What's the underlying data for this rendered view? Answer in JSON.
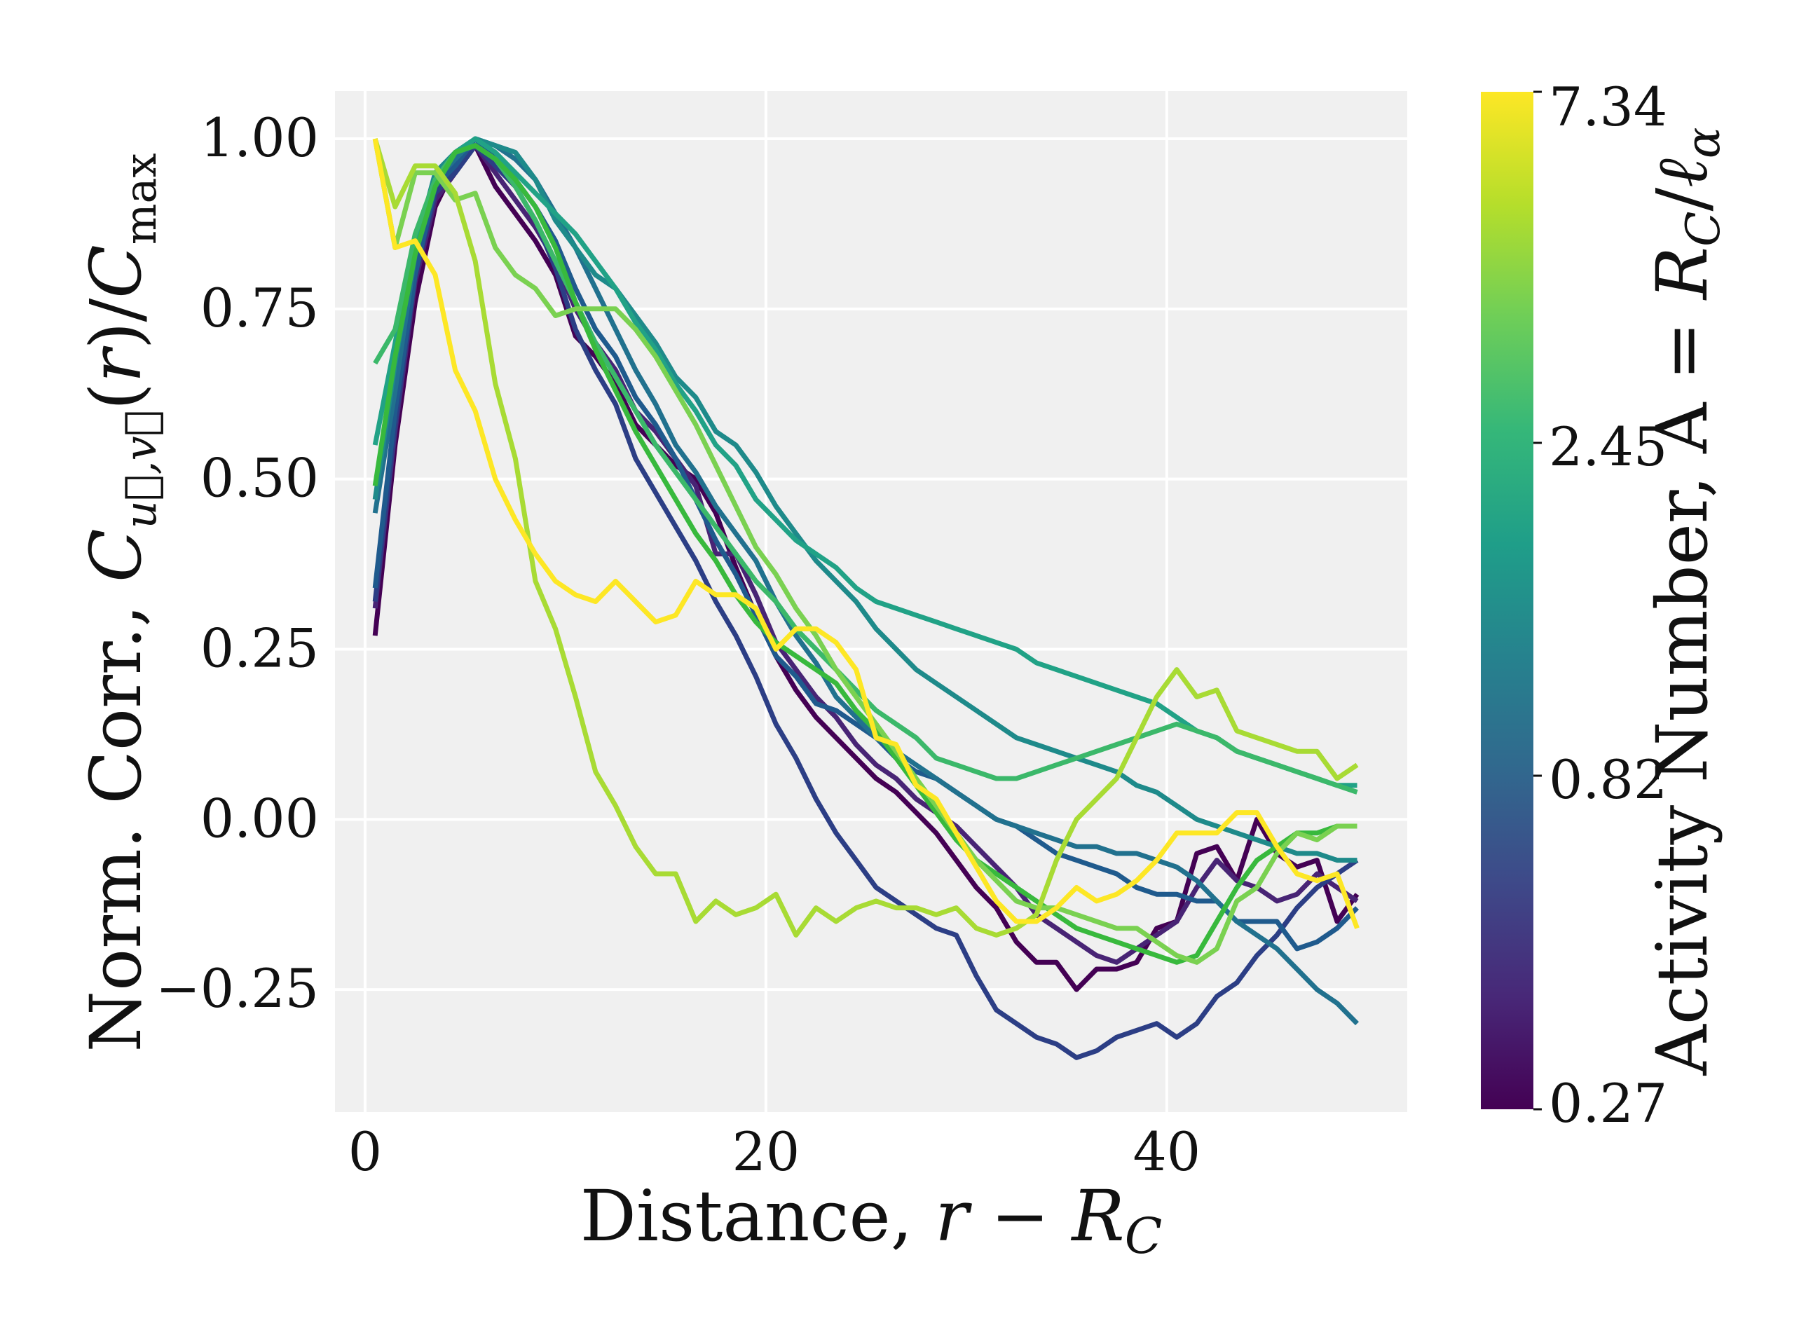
{
  "chart_data": {
    "type": "line",
    "xlabel": "Distance, r − R_C",
    "ylabel": "Norm. Corr., C_{u⃗,v⃗}(r)/C_max",
    "xlim": [
      -1.5,
      52
    ],
    "ylim": [
      -0.43,
      1.07
    ],
    "x_ticks": [
      0,
      20,
      40
    ],
    "x_tick_labels": [
      "0",
      "20",
      "40"
    ],
    "y_ticks": [
      1.0,
      0.75,
      0.5,
      0.25,
      0.0,
      -0.25
    ],
    "y_tick_labels": [
      "1.00",
      "0.75",
      "0.50",
      "0.25",
      "0.00",
      "−0.25"
    ],
    "grid": true,
    "background": "#f0f0f0",
    "x": [
      0.5,
      1.5,
      2.5,
      3.5,
      4.5,
      5.5,
      6.5,
      7.5,
      8.5,
      9.5,
      10.5,
      11.5,
      12.5,
      13.5,
      14.5,
      15.5,
      16.5,
      17.5,
      18.5,
      19.5,
      20.5,
      21.5,
      22.5,
      23.5,
      24.5,
      25.5,
      26.5,
      27.5,
      28.5,
      29.5,
      30.5,
      31.5,
      32.5,
      33.5,
      34.5,
      35.5,
      36.5,
      37.5,
      38.5,
      39.5,
      40.5,
      41.5,
      42.5,
      43.5,
      44.5,
      45.5,
      46.5,
      47.5,
      48.5,
      49.5
    ],
    "series": [
      {
        "color": "#440154",
        "values": [
          0.27,
          0.55,
          0.76,
          0.9,
          0.96,
          0.99,
          0.93,
          0.89,
          0.85,
          0.8,
          0.71,
          0.68,
          0.64,
          0.58,
          0.55,
          0.52,
          0.5,
          0.45,
          0.37,
          0.3,
          0.24,
          0.19,
          0.15,
          0.12,
          0.09,
          0.06,
          0.04,
          0.01,
          -0.02,
          -0.06,
          -0.1,
          -0.13,
          -0.18,
          -0.21,
          -0.21,
          -0.25,
          -0.22,
          -0.22,
          -0.21,
          -0.16,
          -0.15,
          -0.05,
          -0.04,
          -0.09,
          0.0,
          -0.05,
          -0.07,
          -0.06,
          -0.15,
          -0.11
        ]
      },
      {
        "color": "#482475",
        "values": [
          0.31,
          0.57,
          0.79,
          0.91,
          0.95,
          0.99,
          0.95,
          0.91,
          0.87,
          0.82,
          0.75,
          0.7,
          0.66,
          0.6,
          0.57,
          0.53,
          0.49,
          0.39,
          0.39,
          0.33,
          0.26,
          0.22,
          0.18,
          0.15,
          0.11,
          0.08,
          0.06,
          0.03,
          0.01,
          -0.01,
          -0.04,
          -0.07,
          -0.1,
          -0.14,
          -0.16,
          -0.18,
          -0.2,
          -0.21,
          -0.19,
          -0.17,
          -0.15,
          -0.1,
          -0.06,
          -0.09,
          -0.1,
          -0.12,
          -0.11,
          -0.08,
          -0.1,
          -0.12
        ]
      },
      {
        "color": "#2c3e85",
        "values": [
          0.32,
          0.58,
          0.8,
          0.92,
          0.95,
          0.99,
          0.96,
          0.93,
          0.88,
          0.81,
          0.72,
          0.66,
          0.61,
          0.53,
          0.48,
          0.43,
          0.38,
          0.32,
          0.27,
          0.21,
          0.14,
          0.09,
          0.03,
          -0.02,
          -0.06,
          -0.1,
          -0.12,
          -0.14,
          -0.16,
          -0.17,
          -0.23,
          -0.28,
          -0.3,
          -0.32,
          -0.33,
          -0.35,
          -0.34,
          -0.32,
          -0.31,
          -0.3,
          -0.32,
          -0.3,
          -0.26,
          -0.24,
          -0.2,
          -0.17,
          -0.13,
          -0.1,
          -0.08,
          -0.06
        ]
      },
      {
        "color": "#1f5a8d",
        "values": [
          0.34,
          0.6,
          0.8,
          0.93,
          0.96,
          1.0,
          0.97,
          0.94,
          0.9,
          0.85,
          0.78,
          0.72,
          0.68,
          0.62,
          0.58,
          0.53,
          0.47,
          0.41,
          0.36,
          0.3,
          0.24,
          0.21,
          0.17,
          0.16,
          0.14,
          0.12,
          0.09,
          0.07,
          0.06,
          0.04,
          0.02,
          0.0,
          -0.01,
          -0.03,
          -0.05,
          -0.06,
          -0.07,
          -0.08,
          -0.1,
          -0.11,
          -0.11,
          -0.12,
          -0.12,
          -0.15,
          -0.15,
          -0.15,
          -0.19,
          -0.18,
          -0.16,
          -0.13
        ]
      },
      {
        "color": "#21718e",
        "values": [
          0.45,
          0.63,
          0.83,
          0.94,
          0.97,
          1.0,
          0.99,
          0.97,
          0.94,
          0.89,
          0.84,
          0.78,
          0.72,
          0.66,
          0.61,
          0.55,
          0.51,
          0.46,
          0.42,
          0.38,
          0.32,
          0.27,
          0.23,
          0.18,
          0.15,
          0.12,
          0.1,
          0.08,
          0.06,
          0.04,
          0.02,
          0.0,
          -0.01,
          -0.02,
          -0.03,
          -0.04,
          -0.04,
          -0.05,
          -0.05,
          -0.06,
          -0.07,
          -0.09,
          -0.12,
          -0.15,
          -0.17,
          -0.19,
          -0.22,
          -0.25,
          -0.27,
          -0.3
        ]
      },
      {
        "color": "#1e8a8a",
        "values": [
          0.47,
          0.67,
          0.84,
          0.95,
          0.98,
          1.0,
          0.99,
          0.98,
          0.94,
          0.88,
          0.84,
          0.8,
          0.78,
          0.74,
          0.7,
          0.65,
          0.62,
          0.57,
          0.55,
          0.51,
          0.46,
          0.42,
          0.38,
          0.35,
          0.32,
          0.28,
          0.25,
          0.22,
          0.2,
          0.18,
          0.16,
          0.14,
          0.12,
          0.11,
          0.1,
          0.09,
          0.08,
          0.07,
          0.05,
          0.04,
          0.02,
          0.0,
          -0.01,
          -0.02,
          -0.03,
          -0.04,
          -0.05,
          -0.05,
          -0.06,
          -0.06
        ]
      },
      {
        "color": "#21a286",
        "values": [
          0.55,
          0.7,
          0.85,
          0.94,
          0.98,
          1.0,
          0.98,
          0.95,
          0.92,
          0.89,
          0.86,
          0.82,
          0.78,
          0.73,
          0.69,
          0.64,
          0.6,
          0.55,
          0.52,
          0.47,
          0.44,
          0.41,
          0.39,
          0.37,
          0.34,
          0.32,
          0.31,
          0.3,
          0.29,
          0.28,
          0.27,
          0.26,
          0.25,
          0.23,
          0.22,
          0.21,
          0.2,
          0.19,
          0.18,
          0.17,
          0.15,
          0.13,
          0.12,
          0.1,
          0.09,
          0.08,
          0.07,
          0.06,
          0.05,
          0.05
        ]
      },
      {
        "color": "#3bb86a",
        "values": [
          0.67,
          0.72,
          0.86,
          0.94,
          0.98,
          0.99,
          0.97,
          0.93,
          0.88,
          0.82,
          0.76,
          0.7,
          0.65,
          0.6,
          0.55,
          0.51,
          0.47,
          0.43,
          0.39,
          0.35,
          0.32,
          0.28,
          0.25,
          0.22,
          0.19,
          0.16,
          0.14,
          0.12,
          0.09,
          0.08,
          0.07,
          0.06,
          0.06,
          0.07,
          0.08,
          0.09,
          0.1,
          0.11,
          0.12,
          0.13,
          0.14,
          0.13,
          0.12,
          0.1,
          0.09,
          0.08,
          0.07,
          0.06,
          0.05,
          0.04
        ]
      },
      {
        "color": "#38b93d",
        "values": [
          0.49,
          0.68,
          0.83,
          0.93,
          0.98,
          0.99,
          0.97,
          0.94,
          0.9,
          0.84,
          0.76,
          0.69,
          0.63,
          0.57,
          0.52,
          0.47,
          0.42,
          0.38,
          0.33,
          0.29,
          0.26,
          0.24,
          0.22,
          0.2,
          0.16,
          0.13,
          0.09,
          0.05,
          0.01,
          -0.03,
          -0.06,
          -0.08,
          -0.1,
          -0.12,
          -0.14,
          -0.16,
          -0.17,
          -0.18,
          -0.19,
          -0.2,
          -0.21,
          -0.2,
          -0.15,
          -0.1,
          -0.06,
          -0.04,
          -0.02,
          -0.02,
          -0.01,
          -0.01
        ]
      },
      {
        "color": "#7ad151",
        "values": [
          1.0,
          0.84,
          0.95,
          0.95,
          0.91,
          0.92,
          0.84,
          0.8,
          0.78,
          0.74,
          0.75,
          0.75,
          0.75,
          0.72,
          0.68,
          0.63,
          0.58,
          0.52,
          0.46,
          0.4,
          0.36,
          0.31,
          0.27,
          0.22,
          0.18,
          0.14,
          0.1,
          0.06,
          0.02,
          -0.02,
          -0.06,
          -0.09,
          -0.12,
          -0.13,
          -0.13,
          -0.14,
          -0.15,
          -0.16,
          -0.16,
          -0.18,
          -0.2,
          -0.21,
          -0.19,
          -0.12,
          -0.1,
          -0.05,
          -0.02,
          -0.03,
          -0.01,
          -0.01
        ]
      },
      {
        "color": "#a8db34",
        "values": [
          1.0,
          0.9,
          0.96,
          0.96,
          0.92,
          0.82,
          0.64,
          0.53,
          0.35,
          0.28,
          0.18,
          0.07,
          0.02,
          -0.04,
          -0.08,
          -0.08,
          -0.15,
          -0.12,
          -0.14,
          -0.13,
          -0.11,
          -0.17,
          -0.13,
          -0.15,
          -0.13,
          -0.12,
          -0.13,
          -0.13,
          -0.14,
          -0.13,
          -0.16,
          -0.17,
          -0.16,
          -0.14,
          -0.06,
          0.0,
          0.03,
          0.06,
          0.12,
          0.18,
          0.22,
          0.18,
          0.19,
          0.13,
          0.12,
          0.11,
          0.1,
          0.1,
          0.06,
          0.08
        ]
      },
      {
        "color": "#fde725",
        "values": [
          1.0,
          0.84,
          0.85,
          0.8,
          0.66,
          0.6,
          0.5,
          0.44,
          0.39,
          0.35,
          0.33,
          0.32,
          0.35,
          0.32,
          0.29,
          0.3,
          0.35,
          0.33,
          0.33,
          0.31,
          0.25,
          0.28,
          0.28,
          0.26,
          0.22,
          0.12,
          0.11,
          0.05,
          0.03,
          -0.02,
          -0.07,
          -0.12,
          -0.15,
          -0.15,
          -0.13,
          -0.1,
          -0.12,
          -0.11,
          -0.09,
          -0.06,
          -0.02,
          -0.02,
          -0.02,
          0.01,
          0.01,
          -0.04,
          -0.08,
          -0.09,
          -0.08,
          -0.16
        ]
      }
    ],
    "colorbar": {
      "label": "Activity Number, A = R_C/ℓ_α",
      "tick_labels": [
        "7.34",
        "2.45",
        "0.82",
        "0.27"
      ],
      "colormap": [
        "#440154",
        "#482878",
        "#3e4989",
        "#31688e",
        "#26828e",
        "#1f9e89",
        "#35b779",
        "#6ece58",
        "#b5de2b",
        "#fde725"
      ]
    }
  }
}
